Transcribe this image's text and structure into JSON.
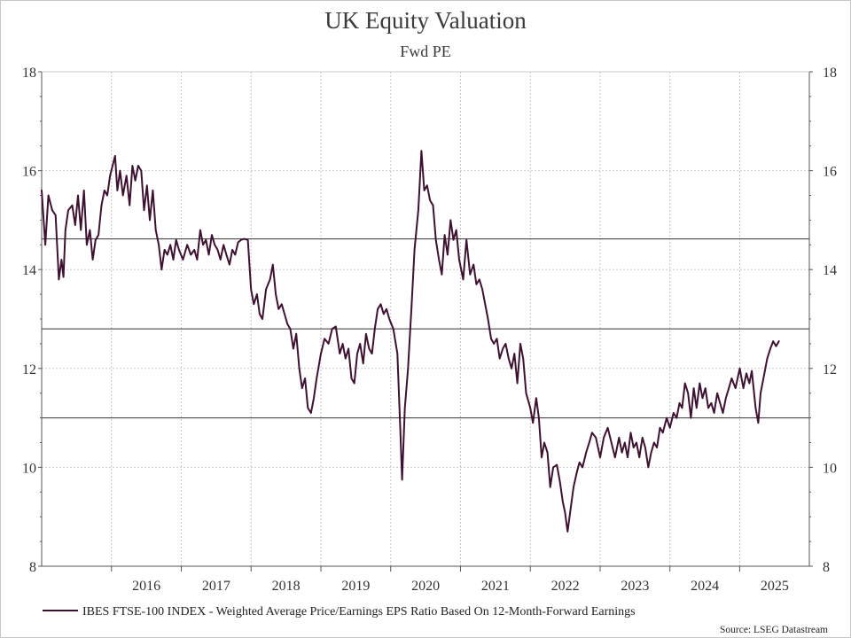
{
  "chart_data": {
    "type": "line",
    "title": "UK Equity Valuation",
    "subtitle": "Fwd PE",
    "source": "Source: LSEG Datastream",
    "x_tick_labels": [
      "2016",
      "2017",
      "2018",
      "2019",
      "2020",
      "2021",
      "2022",
      "2023",
      "2024",
      "2025"
    ],
    "xlim": [
      "2015-01-01",
      "2025-12-31"
    ],
    "ylim": [
      8,
      18
    ],
    "y_ticks": [
      8,
      10,
      12,
      14,
      16,
      18
    ],
    "y_tick_labels": [
      "8",
      "10",
      "12",
      "14",
      "16",
      "18"
    ],
    "grid": true,
    "legend_position": "bottom-left",
    "reference_lines": [
      14.62,
      12.8,
      11.0
    ],
    "colors": {
      "series": "#3d1230",
      "reference": "#333333",
      "grid": "#c8c8c8",
      "axis": "#555555"
    },
    "series": [
      {
        "name": "IBES FTSE-100 INDEX - Weighted Average Price/Earnings EPS Ratio Based On 12-Month-Forward Earnings",
        "points": [
          [
            "2015-01-01",
            15.6
          ],
          [
            "2015-01-20",
            14.5
          ],
          [
            "2015-02-05",
            15.5
          ],
          [
            "2015-02-25",
            15.2
          ],
          [
            "2015-03-15",
            15.1
          ],
          [
            "2015-04-01",
            13.8
          ],
          [
            "2015-04-15",
            14.2
          ],
          [
            "2015-04-25",
            13.85
          ],
          [
            "2015-05-05",
            14.8
          ],
          [
            "2015-05-20",
            15.2
          ],
          [
            "2015-06-10",
            15.3
          ],
          [
            "2015-06-25",
            14.9
          ],
          [
            "2015-07-10",
            15.5
          ],
          [
            "2015-07-25",
            14.8
          ],
          [
            "2015-08-10",
            15.6
          ],
          [
            "2015-08-25",
            14.5
          ],
          [
            "2015-09-10",
            14.8
          ],
          [
            "2015-09-25",
            14.2
          ],
          [
            "2015-10-10",
            14.6
          ],
          [
            "2015-10-25",
            14.7
          ],
          [
            "2015-11-10",
            15.3
          ],
          [
            "2015-11-25",
            15.6
          ],
          [
            "2015-12-10",
            15.5
          ],
          [
            "2015-12-25",
            15.9
          ],
          [
            "2016-01-20",
            16.3
          ],
          [
            "2016-02-01",
            15.6
          ],
          [
            "2016-02-15",
            16.0
          ],
          [
            "2016-03-01",
            15.5
          ],
          [
            "2016-03-20",
            15.9
          ],
          [
            "2016-04-05",
            15.3
          ],
          [
            "2016-04-20",
            16.1
          ],
          [
            "2016-05-05",
            15.8
          ],
          [
            "2016-05-20",
            16.1
          ],
          [
            "2016-06-05",
            16.0
          ],
          [
            "2016-06-20",
            15.2
          ],
          [
            "2016-07-05",
            15.7
          ],
          [
            "2016-07-20",
            15.0
          ],
          [
            "2016-08-05",
            15.6
          ],
          [
            "2016-08-20",
            14.8
          ],
          [
            "2016-09-05",
            14.5
          ],
          [
            "2016-09-20",
            14.0
          ],
          [
            "2016-10-05",
            14.4
          ],
          [
            "2016-10-20",
            14.3
          ],
          [
            "2016-11-05",
            14.5
          ],
          [
            "2016-11-20",
            14.2
          ],
          [
            "2016-12-05",
            14.6
          ],
          [
            "2016-12-20",
            14.4
          ],
          [
            "2017-01-10",
            14.2
          ],
          [
            "2017-02-01",
            14.5
          ],
          [
            "2017-02-20",
            14.3
          ],
          [
            "2017-03-10",
            14.4
          ],
          [
            "2017-03-25",
            14.2
          ],
          [
            "2017-04-10",
            14.8
          ],
          [
            "2017-04-25",
            14.5
          ],
          [
            "2017-05-10",
            14.6
          ],
          [
            "2017-05-25",
            14.3
          ],
          [
            "2017-06-10",
            14.7
          ],
          [
            "2017-06-25",
            14.5
          ],
          [
            "2017-07-10",
            14.4
          ],
          [
            "2017-07-25",
            14.2
          ],
          [
            "2017-08-10",
            14.5
          ],
          [
            "2017-08-25",
            14.3
          ],
          [
            "2017-09-10",
            14.1
          ],
          [
            "2017-09-25",
            14.4
          ],
          [
            "2017-10-10",
            14.3
          ],
          [
            "2017-10-25",
            14.55
          ],
          [
            "2017-11-10",
            14.6
          ],
          [
            "2017-11-25",
            14.62
          ],
          [
            "2017-12-15",
            14.6
          ],
          [
            "2018-01-01",
            13.6
          ],
          [
            "2018-01-15",
            13.3
          ],
          [
            "2018-02-01",
            13.5
          ],
          [
            "2018-02-15",
            13.1
          ],
          [
            "2018-03-01",
            13.0
          ],
          [
            "2018-03-20",
            13.6
          ],
          [
            "2018-04-10",
            13.8
          ],
          [
            "2018-04-25",
            14.1
          ],
          [
            "2018-05-10",
            13.5
          ],
          [
            "2018-05-25",
            13.2
          ],
          [
            "2018-06-10",
            13.3
          ],
          [
            "2018-06-25",
            13.1
          ],
          [
            "2018-07-10",
            12.9
          ],
          [
            "2018-07-25",
            12.8
          ],
          [
            "2018-08-10",
            12.4
          ],
          [
            "2018-08-25",
            12.7
          ],
          [
            "2018-09-10",
            12.0
          ],
          [
            "2018-09-25",
            11.6
          ],
          [
            "2018-10-10",
            11.8
          ],
          [
            "2018-10-25",
            11.2
          ],
          [
            "2018-11-10",
            11.1
          ],
          [
            "2018-11-25",
            11.4
          ],
          [
            "2018-12-10",
            11.8
          ],
          [
            "2019-01-01",
            12.3
          ],
          [
            "2019-01-20",
            12.6
          ],
          [
            "2019-02-10",
            12.5
          ],
          [
            "2019-03-01",
            12.8
          ],
          [
            "2019-03-20",
            12.85
          ],
          [
            "2019-04-10",
            12.3
          ],
          [
            "2019-04-25",
            12.5
          ],
          [
            "2019-05-10",
            12.2
          ],
          [
            "2019-05-25",
            12.4
          ],
          [
            "2019-06-10",
            11.8
          ],
          [
            "2019-06-25",
            11.7
          ],
          [
            "2019-07-10",
            12.3
          ],
          [
            "2019-07-25",
            12.5
          ],
          [
            "2019-08-10",
            12.1
          ],
          [
            "2019-08-25",
            12.7
          ],
          [
            "2019-09-10",
            12.4
          ],
          [
            "2019-09-25",
            12.3
          ],
          [
            "2019-10-10",
            12.8
          ],
          [
            "2019-10-25",
            13.2
          ],
          [
            "2019-11-10",
            13.3
          ],
          [
            "2019-11-25",
            13.1
          ],
          [
            "2019-12-10",
            13.2
          ],
          [
            "2019-12-25",
            13.0
          ],
          [
            "2020-01-15",
            12.8
          ],
          [
            "2020-02-05",
            12.3
          ],
          [
            "2020-02-20",
            10.8
          ],
          [
            "2020-03-01",
            9.75
          ],
          [
            "2020-03-15",
            11.2
          ],
          [
            "2020-04-01",
            12.0
          ],
          [
            "2020-04-20",
            13.3
          ],
          [
            "2020-05-05",
            14.4
          ],
          [
            "2020-05-25",
            15.2
          ],
          [
            "2020-06-10",
            16.4
          ],
          [
            "2020-06-25",
            15.6
          ],
          [
            "2020-07-10",
            15.7
          ],
          [
            "2020-07-25",
            15.4
          ],
          [
            "2020-08-10",
            15.3
          ],
          [
            "2020-08-25",
            14.6
          ],
          [
            "2020-09-10",
            14.2
          ],
          [
            "2020-09-25",
            13.9
          ],
          [
            "2020-10-10",
            14.7
          ],
          [
            "2020-10-25",
            14.3
          ],
          [
            "2020-11-10",
            15.0
          ],
          [
            "2020-11-25",
            14.6
          ],
          [
            "2020-12-10",
            14.8
          ],
          [
            "2020-12-25",
            14.2
          ],
          [
            "2021-01-15",
            13.8
          ],
          [
            "2021-02-01",
            14.6
          ],
          [
            "2021-02-20",
            13.9
          ],
          [
            "2021-03-10",
            14.1
          ],
          [
            "2021-03-25",
            13.7
          ],
          [
            "2021-04-10",
            13.8
          ],
          [
            "2021-04-25",
            13.6
          ],
          [
            "2021-05-10",
            13.3
          ],
          [
            "2021-05-25",
            13.0
          ],
          [
            "2021-06-10",
            12.6
          ],
          [
            "2021-06-25",
            12.5
          ],
          [
            "2021-07-10",
            12.6
          ],
          [
            "2021-07-25",
            12.2
          ],
          [
            "2021-08-10",
            12.4
          ],
          [
            "2021-08-25",
            12.5
          ],
          [
            "2021-09-10",
            12.2
          ],
          [
            "2021-09-25",
            12.0
          ],
          [
            "2021-10-10",
            12.3
          ],
          [
            "2021-10-25",
            11.7
          ],
          [
            "2021-11-10",
            12.5
          ],
          [
            "2021-11-25",
            12.2
          ],
          [
            "2021-12-10",
            11.5
          ],
          [
            "2022-01-01",
            11.2
          ],
          [
            "2022-01-15",
            10.9
          ],
          [
            "2022-02-01",
            11.4
          ],
          [
            "2022-02-15",
            11.0
          ],
          [
            "2022-03-01",
            10.2
          ],
          [
            "2022-03-15",
            10.5
          ],
          [
            "2022-04-01",
            10.3
          ],
          [
            "2022-04-15",
            9.6
          ],
          [
            "2022-05-01",
            10.0
          ],
          [
            "2022-05-20",
            10.05
          ],
          [
            "2022-06-05",
            9.7
          ],
          [
            "2022-06-20",
            9.3
          ],
          [
            "2022-07-01",
            9.1
          ],
          [
            "2022-07-15",
            8.7
          ],
          [
            "2022-08-01",
            9.2
          ],
          [
            "2022-08-15",
            9.6
          ],
          [
            "2022-09-01",
            9.9
          ],
          [
            "2022-09-15",
            10.1
          ],
          [
            "2022-10-01",
            10.0
          ],
          [
            "2022-10-20",
            10.3
          ],
          [
            "2022-11-05",
            10.5
          ],
          [
            "2022-11-20",
            10.7
          ],
          [
            "2022-12-10",
            10.6
          ],
          [
            "2023-01-01",
            10.2
          ],
          [
            "2023-01-20",
            10.6
          ],
          [
            "2023-02-10",
            10.8
          ],
          [
            "2023-03-01",
            10.5
          ],
          [
            "2023-03-20",
            10.2
          ],
          [
            "2023-04-10",
            10.6
          ],
          [
            "2023-04-25",
            10.3
          ],
          [
            "2023-05-10",
            10.5
          ],
          [
            "2023-05-25",
            10.2
          ],
          [
            "2023-06-10",
            10.7
          ],
          [
            "2023-06-25",
            10.4
          ],
          [
            "2023-07-10",
            10.5
          ],
          [
            "2023-07-25",
            10.2
          ],
          [
            "2023-08-10",
            10.6
          ],
          [
            "2023-08-25",
            10.4
          ],
          [
            "2023-09-10",
            10.0
          ],
          [
            "2023-09-25",
            10.3
          ],
          [
            "2023-10-10",
            10.5
          ],
          [
            "2023-10-25",
            10.4
          ],
          [
            "2023-11-10",
            10.8
          ],
          [
            "2023-11-25",
            10.7
          ],
          [
            "2023-12-15",
            11.0
          ],
          [
            "2024-01-01",
            10.8
          ],
          [
            "2024-01-20",
            11.1
          ],
          [
            "2024-02-05",
            11.0
          ],
          [
            "2024-02-20",
            11.3
          ],
          [
            "2024-03-05",
            11.2
          ],
          [
            "2024-03-20",
            11.7
          ],
          [
            "2024-04-05",
            11.5
          ],
          [
            "2024-04-20",
            11.0
          ],
          [
            "2024-05-05",
            11.6
          ],
          [
            "2024-05-20",
            11.2
          ],
          [
            "2024-06-05",
            11.7
          ],
          [
            "2024-06-20",
            11.4
          ],
          [
            "2024-07-05",
            11.6
          ],
          [
            "2024-07-20",
            11.2
          ],
          [
            "2024-08-05",
            11.3
          ],
          [
            "2024-08-20",
            11.1
          ],
          [
            "2024-09-05",
            11.5
          ],
          [
            "2024-09-20",
            11.3
          ],
          [
            "2024-10-05",
            11.1
          ],
          [
            "2024-10-20",
            11.4
          ],
          [
            "2024-11-05",
            11.6
          ],
          [
            "2024-11-20",
            11.8
          ],
          [
            "2024-12-10",
            11.6
          ],
          [
            "2025-01-01",
            12.0
          ],
          [
            "2025-01-20",
            11.6
          ],
          [
            "2025-02-05",
            11.9
          ],
          [
            "2025-02-20",
            11.7
          ],
          [
            "2025-03-05",
            11.95
          ],
          [
            "2025-03-25",
            11.2
          ],
          [
            "2025-04-08",
            10.9
          ],
          [
            "2025-04-20",
            11.5
          ],
          [
            "2025-05-10",
            11.9
          ],
          [
            "2025-05-25",
            12.2
          ],
          [
            "2025-06-10",
            12.4
          ],
          [
            "2025-06-25",
            12.55
          ],
          [
            "2025-07-10",
            12.45
          ],
          [
            "2025-07-25",
            12.55
          ]
        ]
      }
    ]
  }
}
